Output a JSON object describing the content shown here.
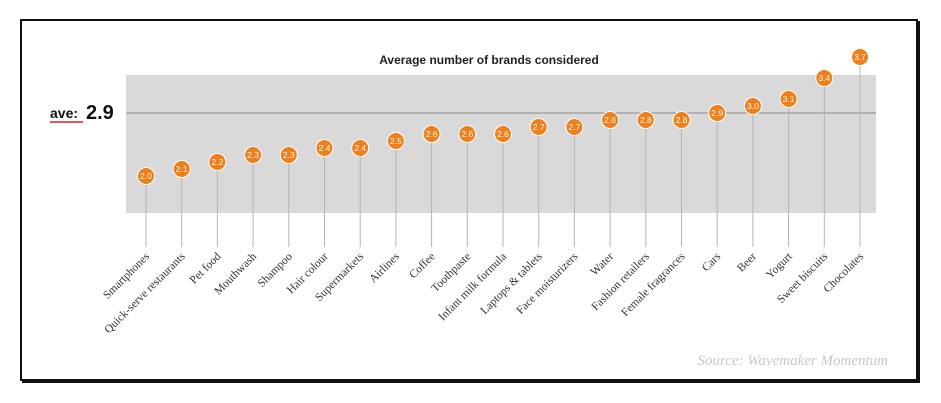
{
  "colors": {
    "band": "#d9d9d9",
    "marker": "#f07f1a",
    "stem": "#b5b5b5",
    "average_line": "#8c8c8c",
    "average_underline": "#e21b23"
  },
  "chart_data": {
    "type": "scatter",
    "title": "Average number of brands considered",
    "average": {
      "label": "ave:",
      "value_text": "2.9",
      "value": 2.9
    },
    "categories": [
      "Smartphones",
      "Quick-serve restaurants",
      "Pet food",
      "Mouthwash",
      "Shampoo",
      "Hair colour",
      "Supermarkets",
      "Airlines",
      "Coffee",
      "Toothpaste",
      "Infant milk formula",
      "Laptops & tablets",
      "Face moisturizers",
      "Water",
      "Fashion retailers",
      "Female fragrances",
      "Cars",
      "Beer",
      "Yogurt",
      "Sweet biscuits",
      "Chocolates"
    ],
    "values": [
      2.0,
      2.1,
      2.2,
      2.3,
      2.3,
      2.4,
      2.4,
      2.5,
      2.6,
      2.6,
      2.6,
      2.7,
      2.7,
      2.8,
      2.8,
      2.8,
      2.9,
      3.0,
      3.1,
      3.4,
      3.7
    ],
    "value_labels": [
      "2.0",
      "2.1",
      "2.2",
      "2.3",
      "2.3",
      "2.4",
      "2.4",
      "2.5",
      "2.6",
      "2.6",
      "2.6",
      "2.7",
      "2.7",
      "2.8",
      "2.8",
      "2.8",
      "2.9",
      "3.0",
      "3.1",
      "3.4",
      "3.7"
    ],
    "ylim": [
      1.9,
      3.8
    ],
    "grid": false,
    "source": "Source: Wavemaker Momentum"
  }
}
